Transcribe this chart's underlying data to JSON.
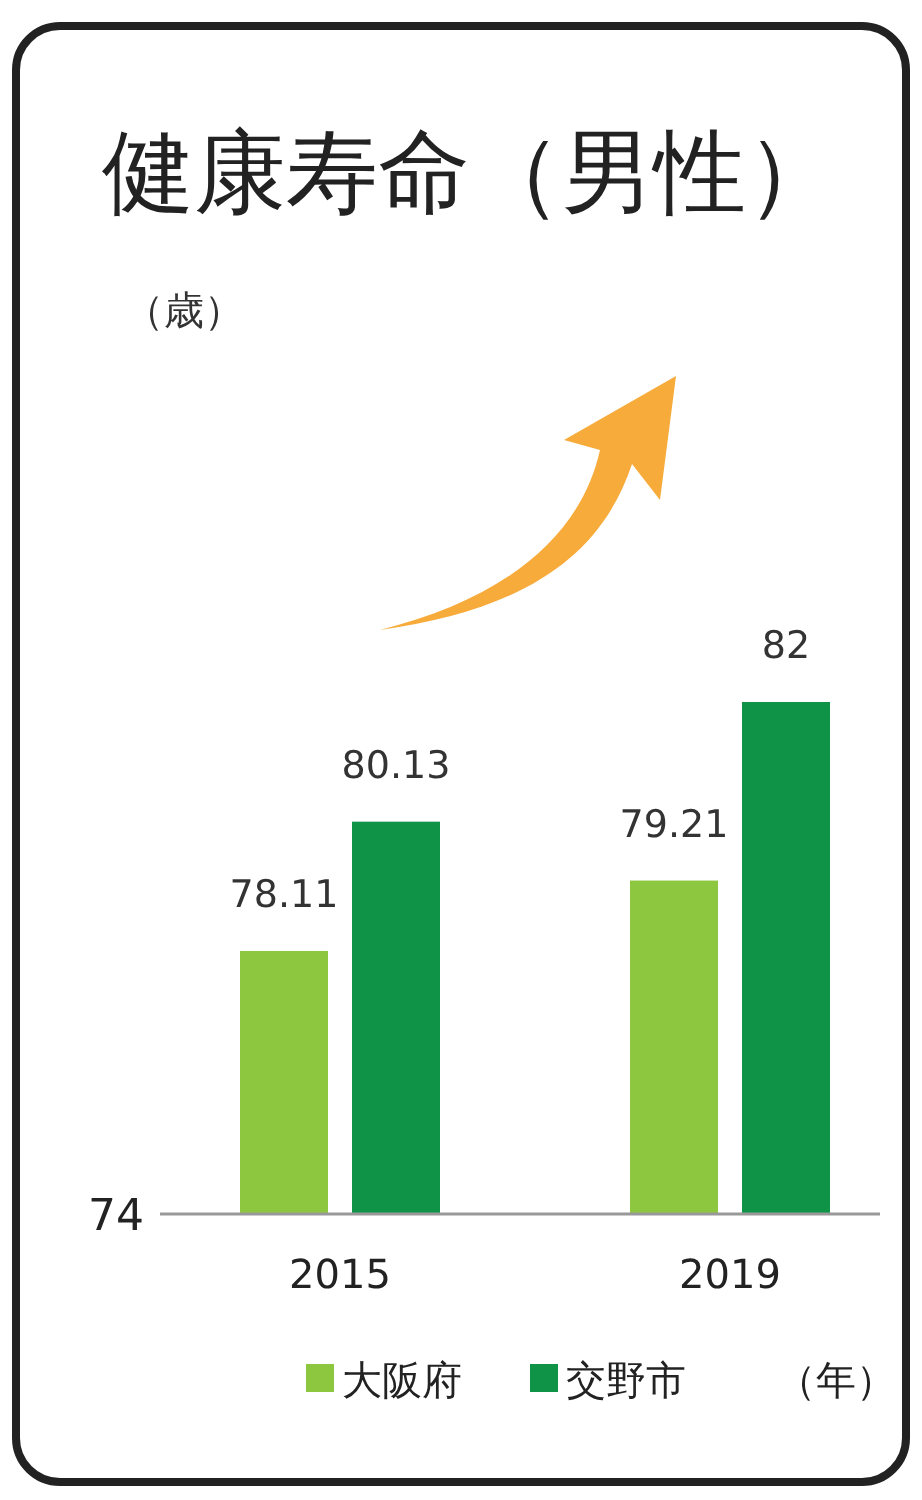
{
  "chart_data": {
    "type": "bar",
    "title": "健康寿命（男性）",
    "xlabel": "（年）",
    "categories": [
      "2015",
      "2019"
    ],
    "series": [
      {
        "name": "大阪府",
        "color": "#8dc63f",
        "values": [
          78.11,
          79.21
        ]
      },
      {
        "name": "交野市",
        "color": "#0f9447",
        "values": [
          80.13,
          82
        ]
      }
    ],
    "ylim": [
      74,
      82
    ],
    "annotations": [
      "（歳）",
      "74"
    ],
    "data_labels": true,
    "legend": "bottom"
  }
}
